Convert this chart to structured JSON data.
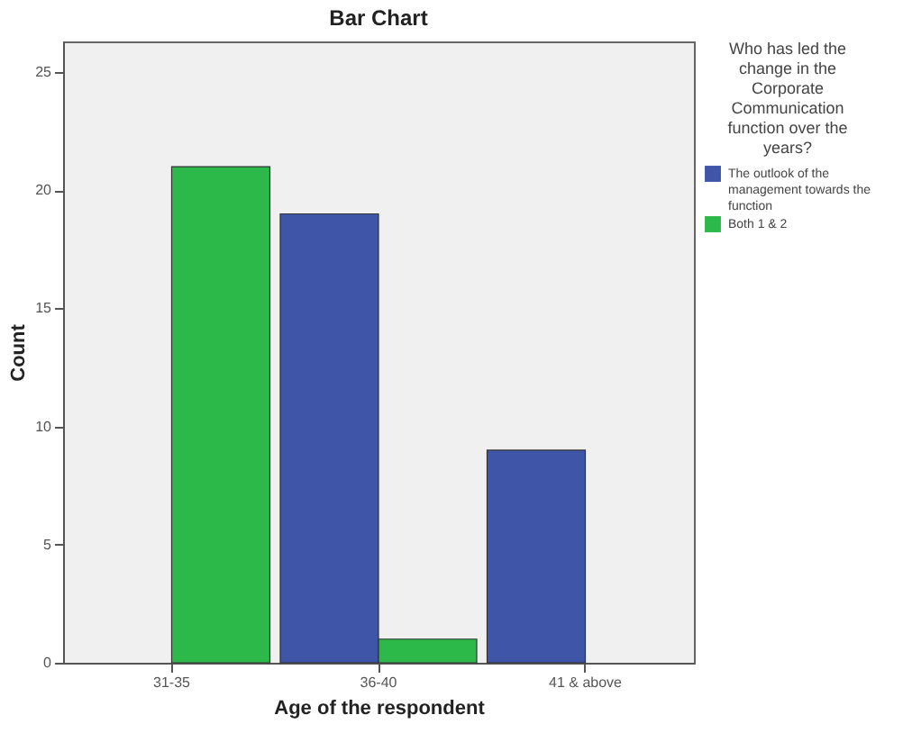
{
  "chart_data": {
    "type": "bar",
    "title": "Bar Chart",
    "xlabel": "Age of the respondent",
    "ylabel": "Count",
    "legend_title": "Who has led the change in the Corporate Communication function over the years?",
    "categories": [
      "31-35",
      "36-40",
      "41 & above"
    ],
    "series": [
      {
        "name": "The outlook of the management towards the function",
        "color": "#3e55a8",
        "values": [
          null,
          19,
          9
        ]
      },
      {
        "name": "Both 1 & 2",
        "color": "#2db84a",
        "values": [
          21,
          1,
          null
        ]
      }
    ],
    "ylim": [
      0,
      26.3
    ],
    "yticks": [
      0,
      5,
      10,
      15,
      20,
      25
    ],
    "grid": false,
    "legend": "right"
  }
}
